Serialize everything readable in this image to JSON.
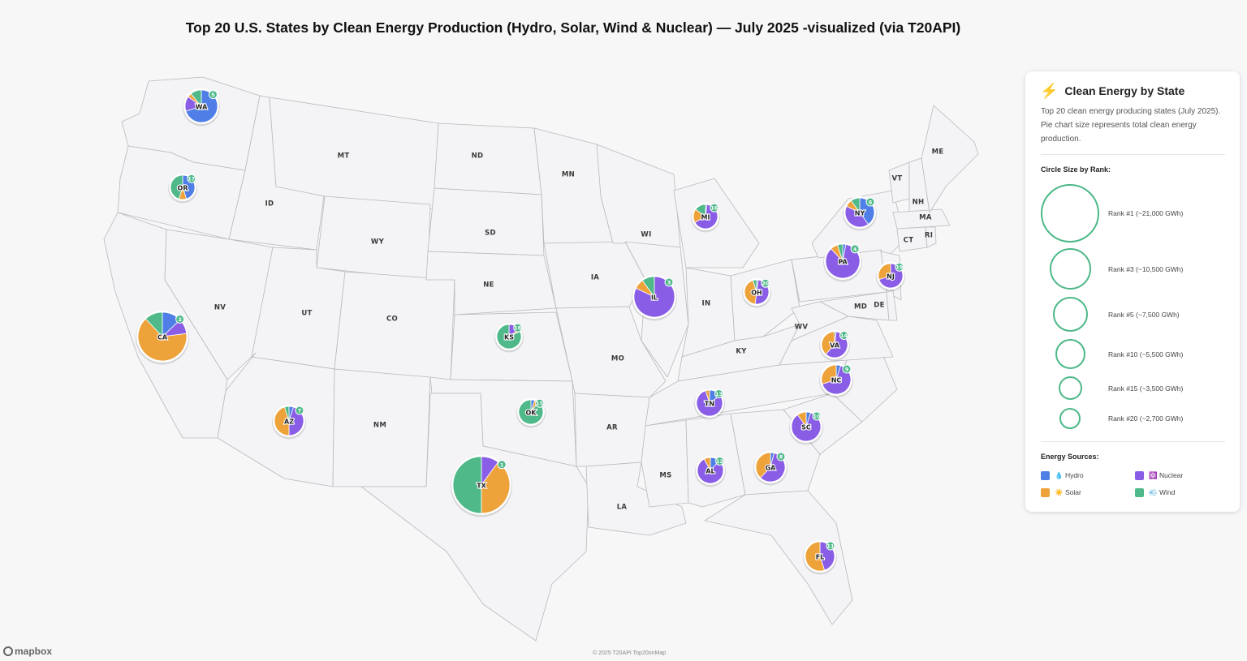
{
  "title": "Top 20 U.S. States by Clean Energy Production (Hydro, Solar, Wind & Nuclear) — July 2025 -visualized (via T20API)",
  "colors": {
    "hydro": "#4f7fe6",
    "solar": "#eea23a",
    "wind": "#4fb98a",
    "nuclear": "#8a5de6",
    "ring": "#4db888",
    "map_fill": "#f4f4f6",
    "map_stroke": "#b9b9bf"
  },
  "state_labels": [
    "MT",
    "ND",
    "MN",
    "ID",
    "WY",
    "SD",
    "WI",
    "IA",
    "NE",
    "NV",
    "UT",
    "CO",
    "IN",
    "OH",
    "PA",
    "MO",
    "KY",
    "WV",
    "MD",
    "DE",
    "AR",
    "MS",
    "LA",
    "NM",
    "ME",
    "VT",
    "NH",
    "MA",
    "CT",
    "RI"
  ],
  "pies": [
    {
      "label": "WA",
      "rank": "5",
      "shares": {
        "hydro": 0.7,
        "nuclear": 0.15,
        "solar": 0.04,
        "wind": 0.11
      }
    },
    {
      "label": "OR",
      "rank": "17",
      "shares": {
        "hydro": 0.45,
        "solar": 0.1,
        "wind": 0.45,
        "nuclear": 0
      }
    },
    {
      "label": "CA",
      "rank": "2",
      "shares": {
        "hydro": 0.13,
        "nuclear": 0.1,
        "solar": 0.65,
        "wind": 0.12
      }
    },
    {
      "label": "AZ",
      "rank": "7",
      "shares": {
        "hydro": 0.05,
        "nuclear": 0.45,
        "solar": 0.45,
        "wind": 0.05
      }
    },
    {
      "label": "TX",
      "rank": "1",
      "shares": {
        "hydro": 0,
        "nuclear": 0.1,
        "solar": 0.4,
        "wind": 0.5
      }
    },
    {
      "label": "KS",
      "rank": "18",
      "shares": {
        "hydro": 0,
        "nuclear": 0.15,
        "solar": 0.03,
        "wind": 0.82
      }
    },
    {
      "label": "OK",
      "rank": "15",
      "shares": {
        "hydro": 0.05,
        "nuclear": 0,
        "solar": 0.05,
        "wind": 0.9
      }
    },
    {
      "label": "IL",
      "rank": "3",
      "shares": {
        "hydro": 0,
        "nuclear": 0.82,
        "solar": 0.08,
        "wind": 0.1
      }
    },
    {
      "label": "MI",
      "rank": "16",
      "shares": {
        "hydro": 0.02,
        "nuclear": 0.65,
        "solar": 0.18,
        "wind": 0.15
      }
    },
    {
      "label": "OH",
      "rank": "20",
      "shares": {
        "hydro": 0.02,
        "nuclear": 0.5,
        "solar": 0.43,
        "wind": 0.05
      }
    },
    {
      "label": "NY",
      "rank": "6",
      "shares": {
        "hydro": 0.4,
        "nuclear": 0.42,
        "solar": 0.08,
        "wind": 0.1
      }
    },
    {
      "label": "PA",
      "rank": "4",
      "shares": {
        "hydro": 0.03,
        "nuclear": 0.85,
        "solar": 0.07,
        "wind": 0.05
      }
    },
    {
      "label": "NJ",
      "rank": "19",
      "shares": {
        "hydro": 0,
        "nuclear": 0.7,
        "solar": 0.3,
        "wind": 0
      }
    },
    {
      "label": "VA",
      "rank": "14",
      "shares": {
        "hydro": 0.02,
        "nuclear": 0.6,
        "solar": 0.38,
        "wind": 0
      }
    },
    {
      "label": "NC",
      "rank": "9",
      "shares": {
        "hydro": 0.05,
        "nuclear": 0.65,
        "solar": 0.3,
        "wind": 0
      }
    },
    {
      "label": "TN",
      "rank": "13",
      "shares": {
        "hydro": 0.15,
        "nuclear": 0.8,
        "solar": 0.05,
        "wind": 0
      }
    },
    {
      "label": "SC",
      "rank": "10",
      "shares": {
        "hydro": 0.05,
        "nuclear": 0.85,
        "solar": 0.1,
        "wind": 0
      }
    },
    {
      "label": "AL",
      "rank": "12",
      "shares": {
        "hydro": 0.12,
        "nuclear": 0.8,
        "solar": 0.08,
        "wind": 0
      }
    },
    {
      "label": "GA",
      "rank": "8",
      "shares": {
        "hydro": 0.04,
        "nuclear": 0.58,
        "solar": 0.38,
        "wind": 0
      }
    },
    {
      "label": "FL",
      "rank": "11",
      "shares": {
        "hydro": 0,
        "nuclear": 0.45,
        "solar": 0.55,
        "wind": 0
      }
    }
  ],
  "panel": {
    "icon": "lightning-bolt-icon",
    "icon_glyph": "⚡",
    "title": "Clean Energy by State",
    "description": "Top 20 clean energy producing states (July 2025). Pie chart size represents total clean energy production.",
    "size_heading": "Circle Size by Rank:",
    "ranks": [
      {
        "label": "Rank #1 (~21,000 GWh)",
        "gwh": 21000
      },
      {
        "label": "Rank #3 (~10,500 GWh)",
        "gwh": 10500
      },
      {
        "label": "Rank #5 (~7,500 GWh)",
        "gwh": 7500
      },
      {
        "label": "Rank #10 (~5,500 GWh)",
        "gwh": 5500
      },
      {
        "label": "Rank #15 (~3,500 GWh)",
        "gwh": 3500
      },
      {
        "label": "Rank #20 (~2,700 GWh)",
        "gwh": 2700
      }
    ],
    "sources_heading": "Energy Sources:",
    "sources": [
      {
        "key": "hydro",
        "icon": "droplet-icon",
        "label": "💧 Hydro"
      },
      {
        "key": "nuclear",
        "icon": "atom-icon",
        "label": "⚛️ Nuclear"
      },
      {
        "key": "solar",
        "icon": "sun-icon",
        "label": "☀️ Solar"
      },
      {
        "key": "wind",
        "icon": "wind-icon",
        "label": "💨 Wind"
      }
    ]
  },
  "mapbox_logo": "mapbox",
  "attribution": "© 2025 T20API Top20onMap"
}
